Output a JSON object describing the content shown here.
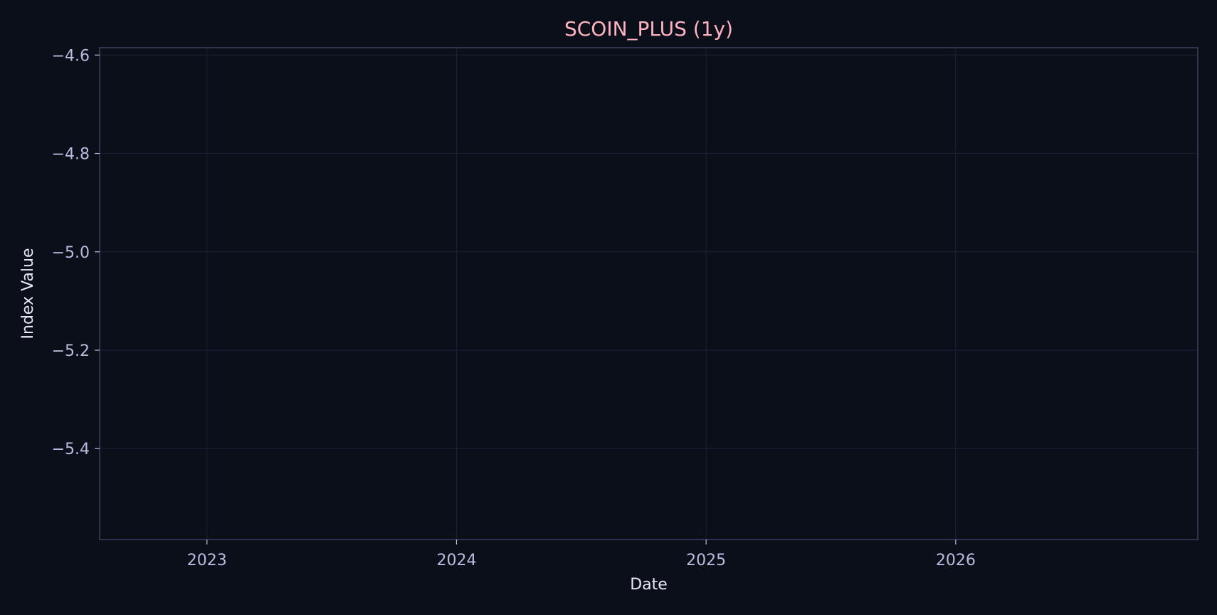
{
  "chart_data": {
    "type": "line",
    "title": "SCOIN_PLUS (1y)",
    "xlabel": "Date",
    "ylabel": "Index Value",
    "x_ticks": [
      "2023",
      "2024",
      "2025",
      "2026"
    ],
    "x_tick_values": [
      2023.0,
      2024.0,
      2025.0,
      2026.0
    ],
    "xlim": [
      2022.57,
      2026.97
    ],
    "y_ticks": [
      "−4.6",
      "−4.8",
      "−5.0",
      "−5.2",
      "−5.4"
    ],
    "y_tick_values": [
      -4.6,
      -4.8,
      -5.0,
      -5.2,
      -5.4
    ],
    "ylim": [
      -5.585,
      -4.585
    ],
    "series": [],
    "grid": true,
    "legend": "none"
  },
  "colors": {
    "background": "#0b0f19",
    "plot_background": "#0b0f19",
    "frame": "#3a4160",
    "grid": "#1c2236",
    "tick_text": "#b8bde0",
    "axis_label_text": "#e6e8f5",
    "title_text": "#ffb3c1"
  }
}
